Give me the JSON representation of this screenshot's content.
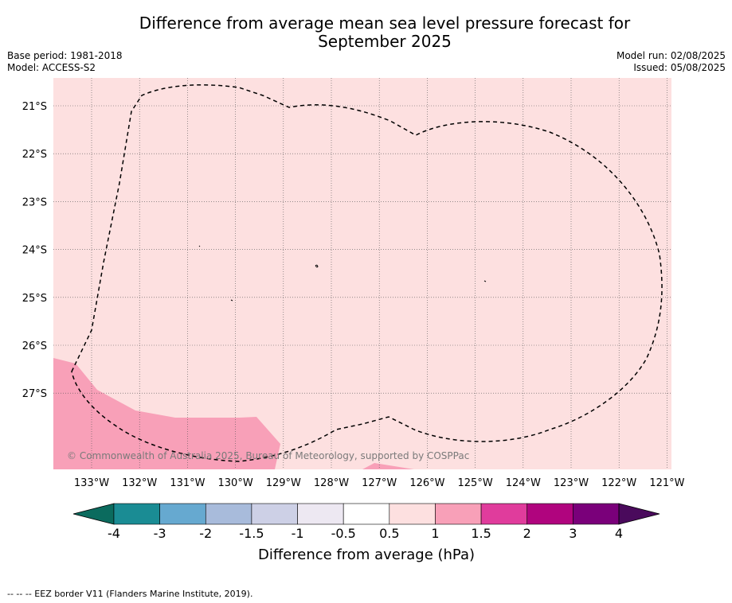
{
  "header": {
    "title_line1": "Difference from average mean sea level pressure forecast for",
    "title_line2": "September 2025",
    "base_period": "Base period: 1981-2018",
    "model": "Model: ACCESS-S2",
    "model_run": "Model run: 02/08/2025",
    "issued": "Issued: 05/08/2025"
  },
  "map": {
    "lat_labels": [
      "21°S",
      "22°S",
      "23°S",
      "24°S",
      "25°S",
      "26°S",
      "27°S"
    ],
    "lon_labels": [
      "133°W",
      "132°W",
      "131°W",
      "130°W",
      "129°W",
      "128°W",
      "127°W",
      "126°W",
      "125°W",
      "124°W",
      "123°W",
      "122°W",
      "121°W"
    ],
    "copyright": "© Commonwealth of Australia 2025, Bureau of Meteorology, supported by COSPPac",
    "background_category": "0.5 to 1",
    "patch_category": "1 to 1.5"
  },
  "colorbar": {
    "ticks": [
      "-4",
      "-3",
      "-2",
      "-1.5",
      "-1",
      "-0.5",
      "0.5",
      "1",
      "1.5",
      "2",
      "3",
      "4"
    ],
    "label": "Difference from average (hPa)",
    "low_extend_color": "#0b6b5e",
    "high_extend_color": "#4a0a5c",
    "colors": [
      "#1a8c94",
      "#66a9d0",
      "#a8bbdb",
      "#cdd0e6",
      "#ede8f2",
      "#ffffff",
      "#fde0e0",
      "#f8a0b8",
      "#e03c9c",
      "#b0047e",
      "#7a007a"
    ]
  },
  "footnote": "--  --  -- EEZ border V11 (Flanders Marine Institute, 2019)."
}
